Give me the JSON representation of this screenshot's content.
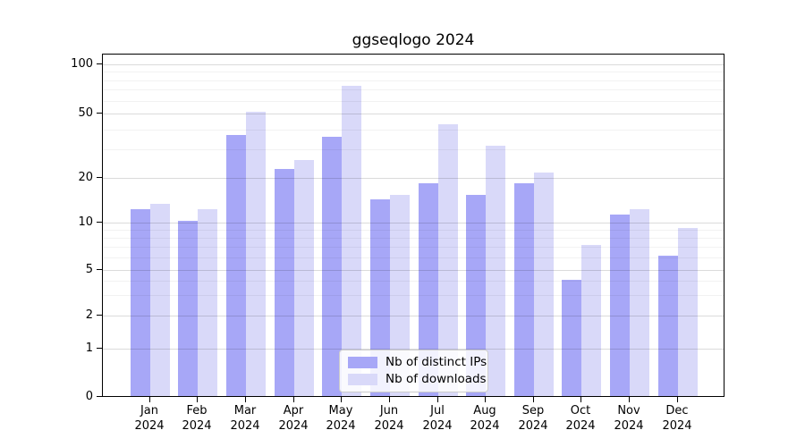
{
  "figure": {
    "title": "ggseqlogo 2024"
  },
  "chart_data": {
    "type": "bar",
    "title": "ggseqlogo 2024",
    "xlabel": "",
    "ylabel": "",
    "x_tick_months": [
      "Jan",
      "Feb",
      "Mar",
      "Apr",
      "May",
      "Jun",
      "Jul",
      "Aug",
      "Sep",
      "Oct",
      "Nov",
      "Dec"
    ],
    "x_tick_year": "2024",
    "series": [
      {
        "name": "Nb of distinct IPs",
        "color": "#a7a7f7",
        "values": [
          12,
          10,
          36,
          22,
          35,
          14,
          18,
          15,
          18,
          4,
          11,
          6
        ]
      },
      {
        "name": "Nb of downloads",
        "color": "#d9d9f9",
        "values": [
          13,
          12,
          50,
          25,
          72,
          15,
          42,
          31,
          21,
          7,
          12,
          9
        ]
      }
    ],
    "y_ticks": [
      0,
      1,
      2,
      5,
      10,
      20,
      50,
      100
    ],
    "y_minor_gridlines": [
      3,
      4,
      6,
      7,
      8,
      9,
      30,
      40,
      60,
      70,
      80,
      90
    ],
    "y_scale": "log-like",
    "ylim": [
      0,
      115
    ],
    "grid": true,
    "legend_position": "bottom-center"
  },
  "colors": {
    "background": "#ffffff",
    "axis": "#000000",
    "bar_distinct_ips": "#a7a7f7",
    "bar_downloads": "#d9d9f9"
  }
}
